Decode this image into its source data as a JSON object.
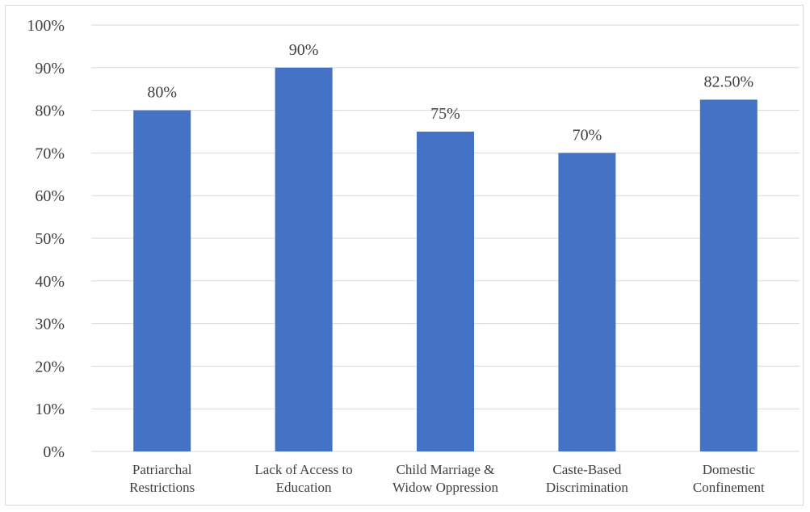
{
  "chart_data": {
    "type": "bar",
    "categories": [
      [
        "Patriarchal",
        "Restrictions"
      ],
      [
        "Lack of Access to",
        "Education"
      ],
      [
        "Child Marriage &",
        "Widow Oppression"
      ],
      [
        "Caste-Based",
        "Discrimination"
      ],
      [
        "Domestic",
        "Confinement"
      ]
    ],
    "values": [
      80,
      90,
      75,
      70,
      82.5
    ],
    "data_labels": [
      "80%",
      "90%",
      "75%",
      "70%",
      "82.50%"
    ],
    "y_ticks": [
      "0%",
      "10%",
      "20%",
      "30%",
      "40%",
      "50%",
      "60%",
      "70%",
      "80%",
      "90%",
      "100%"
    ],
    "ylim": [
      0,
      100
    ],
    "grid": true,
    "legend": "none",
    "title": "",
    "xlabel": "",
    "ylabel": "",
    "colors": {
      "bar": "#4472C4",
      "grid": "#d9d9d9",
      "text": "#404040",
      "border": "#d9d9d9"
    }
  }
}
